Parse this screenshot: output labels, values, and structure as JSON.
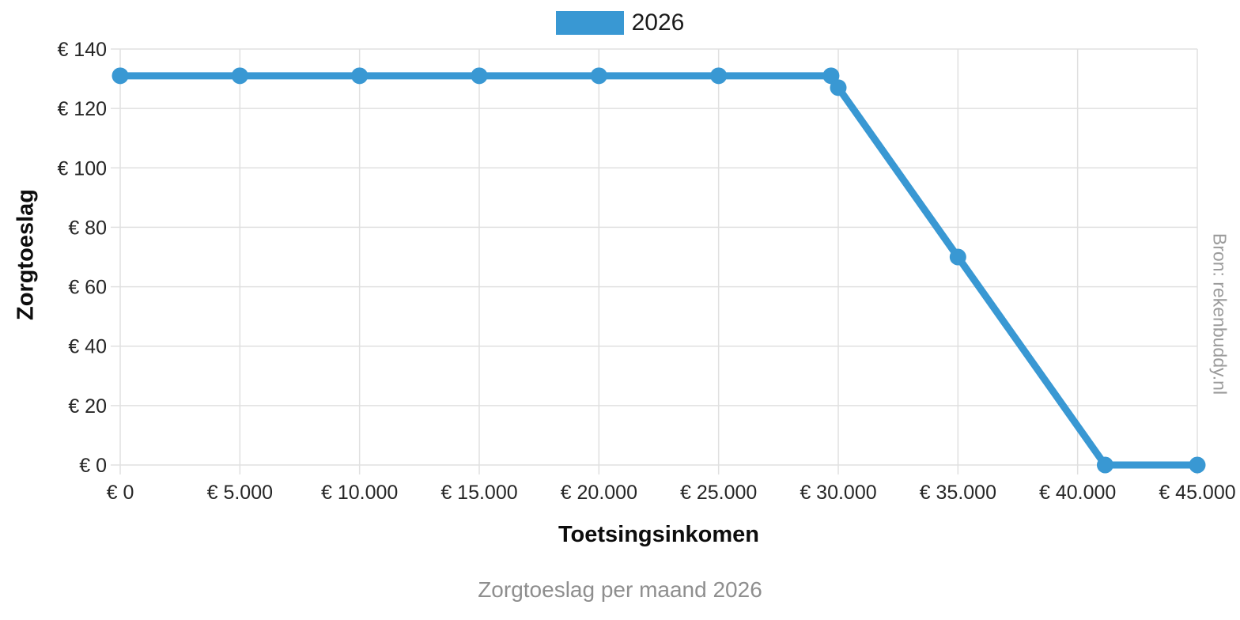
{
  "chart_data": {
    "type": "line",
    "title": "Zorgtoeslag per maand 2026",
    "xlabel": "Toetsingsinkomen",
    "ylabel": "Zorgtoeslag",
    "source": "Bron: rekenbuddy.nl",
    "xlim": [
      0,
      45000
    ],
    "ylim": [
      0,
      140
    ],
    "grid": true,
    "legend_position": "top-center",
    "legend": [
      {
        "name": "2026",
        "color": "#3998d3"
      }
    ],
    "x_ticks": [
      {
        "value": 0,
        "label": "€ 0"
      },
      {
        "value": 5000,
        "label": "€ 5.000"
      },
      {
        "value": 10000,
        "label": "€ 10.000"
      },
      {
        "value": 15000,
        "label": "€ 15.000"
      },
      {
        "value": 20000,
        "label": "€ 20.000"
      },
      {
        "value": 25000,
        "label": "€ 25.000"
      },
      {
        "value": 30000,
        "label": "€ 30.000"
      },
      {
        "value": 35000,
        "label": "€ 35.000"
      },
      {
        "value": 40000,
        "label": "€ 40.000"
      },
      {
        "value": 45000,
        "label": "€ 45.000"
      }
    ],
    "y_ticks": [
      {
        "value": 0,
        "label": "€ 0"
      },
      {
        "value": 20,
        "label": "€ 20"
      },
      {
        "value": 40,
        "label": "€ 40"
      },
      {
        "value": 60,
        "label": "€ 60"
      },
      {
        "value": 80,
        "label": "€ 80"
      },
      {
        "value": 100,
        "label": "€ 100"
      },
      {
        "value": 120,
        "label": "€ 120"
      },
      {
        "value": 140,
        "label": "€ 140"
      }
    ],
    "series": [
      {
        "name": "2026",
        "color": "#3998d3",
        "points": [
          [
            0,
            131
          ],
          [
            5000,
            131
          ],
          [
            10000,
            131
          ],
          [
            15000,
            131
          ],
          [
            20000,
            131
          ],
          [
            25000,
            131
          ],
          [
            29700,
            131
          ],
          [
            30000,
            127
          ],
          [
            35000,
            70
          ],
          [
            41150,
            0
          ],
          [
            45000,
            0
          ]
        ]
      }
    ]
  },
  "colors": {
    "line": "#3998d3",
    "grid": "#e0e0e0",
    "tick_text": "#262626",
    "muted_text": "#8e8e8e"
  }
}
